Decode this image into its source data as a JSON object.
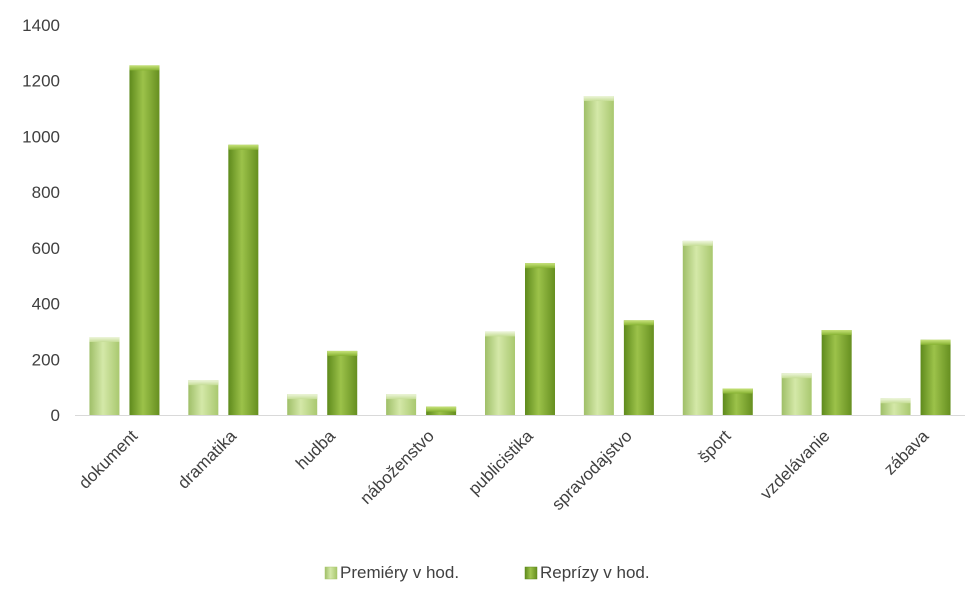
{
  "chart_data": {
    "type": "bar",
    "categories": [
      "dokument",
      "dramatika",
      "hudba",
      "náboženstvo",
      "publicistika",
      "spravodajstvo",
      "šport",
      "vzdelávanie",
      "zábava"
    ],
    "series": [
      {
        "name": "Premiéry v hod.",
        "values": [
          280,
          125,
          75,
          75,
          300,
          1145,
          625,
          150,
          60
        ],
        "color": "#b9d67f"
      },
      {
        "name": "Reprízy v hod.",
        "values": [
          1255,
          970,
          230,
          30,
          545,
          340,
          95,
          305,
          270
        ],
        "color": "#7aa22c"
      }
    ],
    "ylim": [
      0,
      1400
    ],
    "yticks": [
      0,
      200,
      400,
      600,
      800,
      1000,
      1200,
      1400
    ],
    "legend_position": "bottom",
    "grid": false
  }
}
